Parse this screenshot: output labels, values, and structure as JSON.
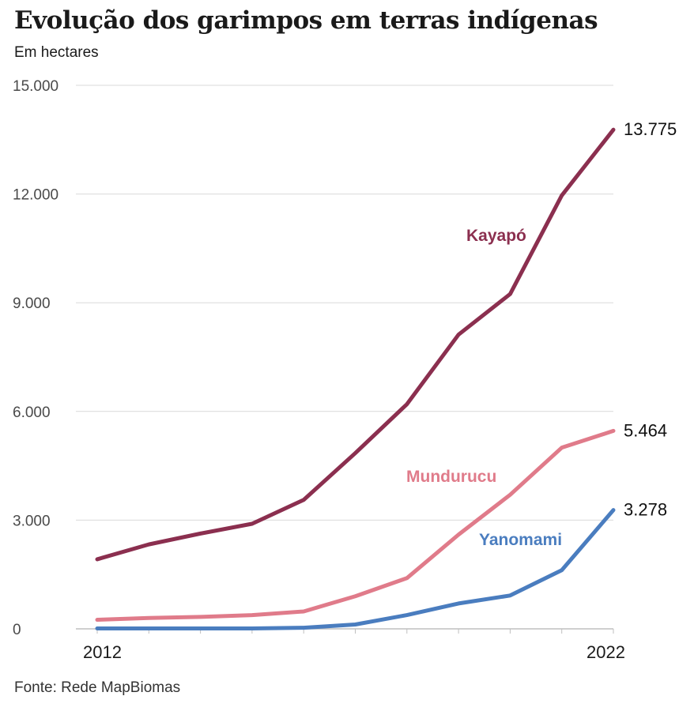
{
  "header": {
    "title": "Evolução dos garimpos em terras indígenas",
    "subtitle": "Em hectares"
  },
  "footer": {
    "source": "Fonte: Rede MapBiomas"
  },
  "chart_data": {
    "type": "line",
    "title": "Evolução dos garimpos em terras indígenas",
    "subtitle": "Em hectares",
    "x": [
      2012,
      2013,
      2014,
      2015,
      2016,
      2017,
      2018,
      2019,
      2020,
      2021,
      2022
    ],
    "x_tick_labels": [
      "2012",
      "2022"
    ],
    "y_ticks": [
      0,
      3000,
      6000,
      9000,
      12000,
      15000
    ],
    "y_tick_labels": [
      "0",
      "3.000",
      "6.000",
      "9.000",
      "12.000",
      "15.000"
    ],
    "ylim": [
      0,
      15000
    ],
    "grid": true,
    "series": [
      {
        "name": "Kayapó",
        "color": "#8b2f4f",
        "values": [
          1920,
          2330,
          2630,
          2900,
          3560,
          4850,
          6200,
          8120,
          9240,
          11960,
          13775
        ],
        "end_label": "13.775"
      },
      {
        "name": "Mundurucu",
        "color": "#e07b8a",
        "values": [
          250,
          300,
          330,
          380,
          480,
          900,
          1400,
          2600,
          3700,
          5000,
          5464
        ],
        "end_label": "5.464"
      },
      {
        "name": "Yanomami",
        "color": "#4a7dbf",
        "values": [
          10,
          10,
          10,
          10,
          30,
          120,
          380,
          700,
          920,
          1620,
          3278
        ],
        "end_label": "3.278"
      }
    ],
    "source": "Fonte: Rede MapBiomas"
  }
}
